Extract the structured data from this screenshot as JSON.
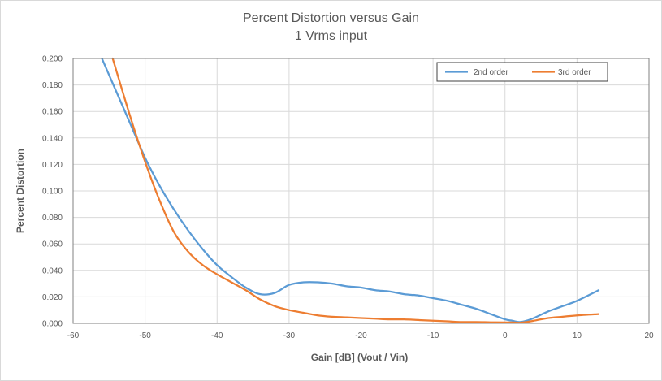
{
  "chart_data": {
    "type": "line",
    "title": "Percent Distortion versus Gain",
    "subtitle": "1 Vrms input",
    "xlabel": "Gain [dB]  (Vout / Vin)",
    "ylabel": "Percent Distortion",
    "xlim": [
      -60,
      20
    ],
    "ylim": [
      0,
      0.2
    ],
    "xticks": [
      -60,
      -50,
      -40,
      -30,
      -20,
      -10,
      0,
      10,
      20
    ],
    "yticks": [
      "0.000",
      "0.020",
      "0.040",
      "0.060",
      "0.080",
      "0.100",
      "0.120",
      "0.140",
      "0.160",
      "0.180",
      "0.200"
    ],
    "grid": true,
    "legend_position": "top-right",
    "series": [
      {
        "name": "2nd order",
        "color": "#5b9bd5",
        "x": [
          -56,
          -54,
          -52,
          -50,
          -48,
          -46,
          -44,
          -42,
          -40,
          -38,
          -36,
          -34,
          -32,
          -30,
          -28,
          -26,
          -24,
          -22,
          -20,
          -18,
          -16,
          -14,
          -12,
          -10,
          -8,
          -6,
          -4,
          -2,
          0,
          1,
          2,
          3,
          4,
          6,
          8,
          10,
          13
        ],
        "y": [
          0.2,
          0.175,
          0.15,
          0.125,
          0.104,
          0.086,
          0.07,
          0.056,
          0.044,
          0.035,
          0.027,
          0.022,
          0.023,
          0.029,
          0.031,
          0.031,
          0.03,
          0.028,
          0.027,
          0.025,
          0.024,
          0.022,
          0.021,
          0.019,
          0.017,
          0.014,
          0.011,
          0.007,
          0.003,
          0.002,
          0.001,
          0.002,
          0.004,
          0.009,
          0.013,
          0.017,
          0.025
        ]
      },
      {
        "name": "3rd order",
        "color": "#ed7d31",
        "x": [
          -54.5,
          -52,
          -50,
          -48,
          -46,
          -44,
          -42,
          -40,
          -38,
          -36,
          -34,
          -32,
          -30,
          -28,
          -26,
          -24,
          -22,
          -20,
          -18,
          -16,
          -14,
          -12,
          -10,
          -8,
          -6,
          -4,
          -2,
          0,
          1,
          2,
          3,
          4,
          6,
          8,
          10,
          13
        ],
        "y": [
          0.2,
          0.155,
          0.122,
          0.093,
          0.069,
          0.054,
          0.044,
          0.037,
          0.031,
          0.025,
          0.018,
          0.013,
          0.01,
          0.008,
          0.006,
          0.005,
          0.0045,
          0.004,
          0.0035,
          0.003,
          0.003,
          0.0025,
          0.002,
          0.0015,
          0.001,
          0.001,
          0.0008,
          0.0007,
          0.0007,
          0.0005,
          0.001,
          0.002,
          0.004,
          0.005,
          0.006,
          0.007
        ]
      }
    ]
  }
}
